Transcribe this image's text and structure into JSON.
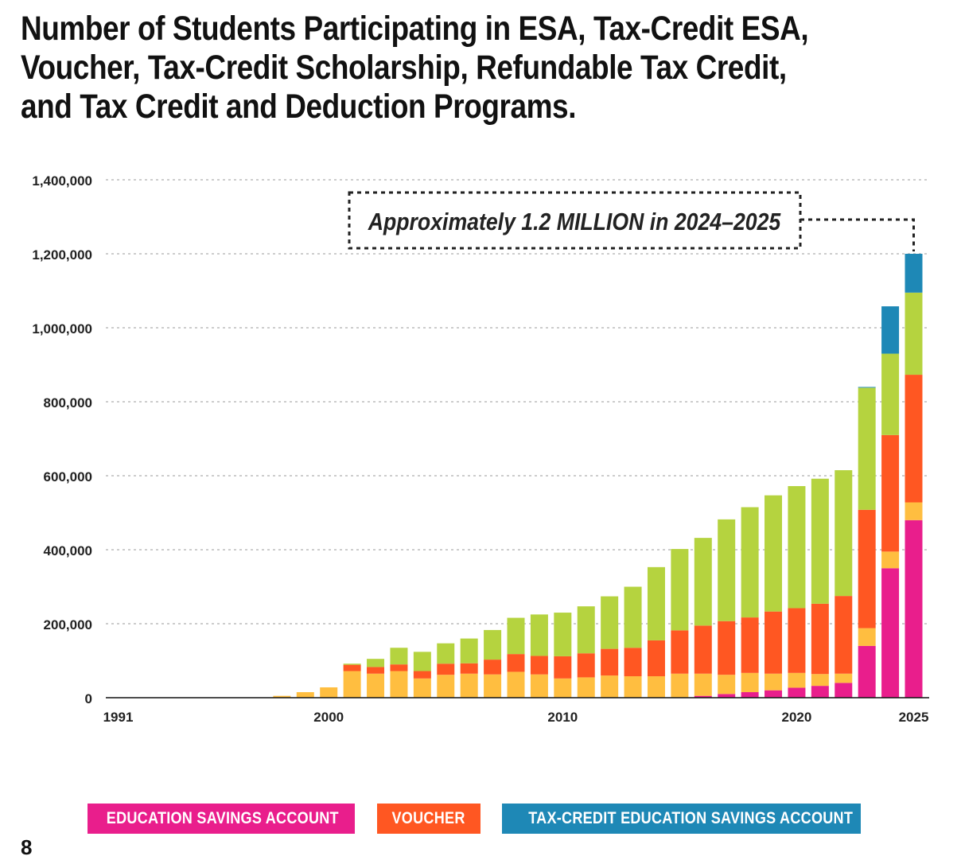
{
  "title_lines": [
    "Number of Students Participating in ESA, Tax-Credit ESA,",
    "Voucher, Tax-Credit Scholarship, Refundable Tax Credit,",
    "and Tax Credit and Deduction Programs."
  ],
  "page_number": "8",
  "legend": [
    {
      "label": "EDUCATION SAVINGS ACCOUNT",
      "color": "#e91e8c"
    },
    {
      "label": "VOUCHER",
      "color": "#ff5722"
    },
    {
      "label": "TAX-CREDIT EDUCATION SAVINGS ACCOUNT",
      "color": "#1e88b6"
    }
  ],
  "chart_data": {
    "type": "bar",
    "stacked": true,
    "title": "Number of Students Participating in ESA, Tax-Credit ESA, Voucher, Tax-Credit Scholarship, Refundable Tax Credit, and Tax Credit and Deduction Programs.",
    "xlabel": "",
    "ylabel": "",
    "ylim": [
      0,
      1400000
    ],
    "yticks": [
      0,
      200000,
      400000,
      600000,
      800000,
      1000000,
      1200000,
      1400000
    ],
    "ytick_labels": [
      "0",
      "200,000",
      "400,000",
      "600,000",
      "800,000",
      "1,000,000",
      "1,200,000",
      "1,400,000"
    ],
    "xtick_labels": [
      "1991",
      "2000",
      "2010",
      "2020",
      "2025"
    ],
    "xtick_positions": [
      1991,
      2000,
      2010,
      2020,
      2025
    ],
    "grid": "horizontal dotted",
    "annotation": "Approximately 1.2 MILLION in 2024–2025",
    "categories": [
      1991,
      1992,
      1993,
      1994,
      1995,
      1996,
      1997,
      1998,
      1999,
      2000,
      2001,
      2002,
      2003,
      2004,
      2005,
      2006,
      2007,
      2008,
      2009,
      2010,
      2011,
      2012,
      2013,
      2014,
      2015,
      2016,
      2017,
      2018,
      2019,
      2020,
      2021,
      2022,
      2023,
      2024,
      2025
    ],
    "series": [
      {
        "name": "EDUCATION SAVINGS ACCOUNT",
        "color": "#e91e8c",
        "values": [
          0,
          0,
          0,
          0,
          0,
          0,
          0,
          0,
          0,
          0,
          0,
          0,
          0,
          0,
          0,
          0,
          0,
          0,
          0,
          0,
          0,
          0,
          0,
          0,
          0,
          5000,
          10000,
          15000,
          20000,
          27000,
          32000,
          40000,
          140000,
          350000,
          480000
        ]
      },
      {
        "color": "#ffbe40",
        "values": [
          1000,
          1000,
          1000,
          1000,
          1000,
          1000,
          1000,
          5000,
          15000,
          28000,
          72000,
          65000,
          72000,
          52000,
          62000,
          65000,
          63000,
          70000,
          63000,
          52000,
          55000,
          60000,
          58000,
          58000,
          65000,
          60000,
          52000,
          52000,
          45000,
          40000,
          32000,
          25000,
          48000,
          45000,
          48000
        ]
      },
      {
        "name": "VOUCHER",
        "color": "#ff5722",
        "values": [
          0,
          0,
          0,
          0,
          0,
          0,
          0,
          0,
          0,
          0,
          17000,
          18000,
          18000,
          20000,
          30000,
          28000,
          40000,
          48000,
          50000,
          60000,
          65000,
          72000,
          77000,
          97000,
          117000,
          130000,
          145000,
          150000,
          168000,
          175000,
          190000,
          210000,
          320000,
          315000,
          345000
        ]
      },
      {
        "color": "#b5d33f",
        "values": [
          0,
          0,
          0,
          0,
          0,
          0,
          0,
          0,
          0,
          0,
          3000,
          22000,
          45000,
          52000,
          55000,
          67000,
          80000,
          98000,
          112000,
          118000,
          127000,
          142000,
          165000,
          198000,
          220000,
          237000,
          275000,
          298000,
          314000,
          330000,
          338000,
          340000,
          330000,
          220000,
          222000
        ]
      },
      {
        "name": "TAX-CREDIT EDUCATION SAVINGS ACCOUNT",
        "color": "#1e88b6",
        "values": [
          0,
          0,
          0,
          0,
          0,
          0,
          0,
          0,
          0,
          0,
          0,
          0,
          0,
          0,
          0,
          0,
          0,
          0,
          0,
          0,
          0,
          0,
          0,
          0,
          0,
          0,
          0,
          0,
          0,
          0,
          0,
          0,
          2000,
          128000,
          105000
        ]
      }
    ]
  }
}
